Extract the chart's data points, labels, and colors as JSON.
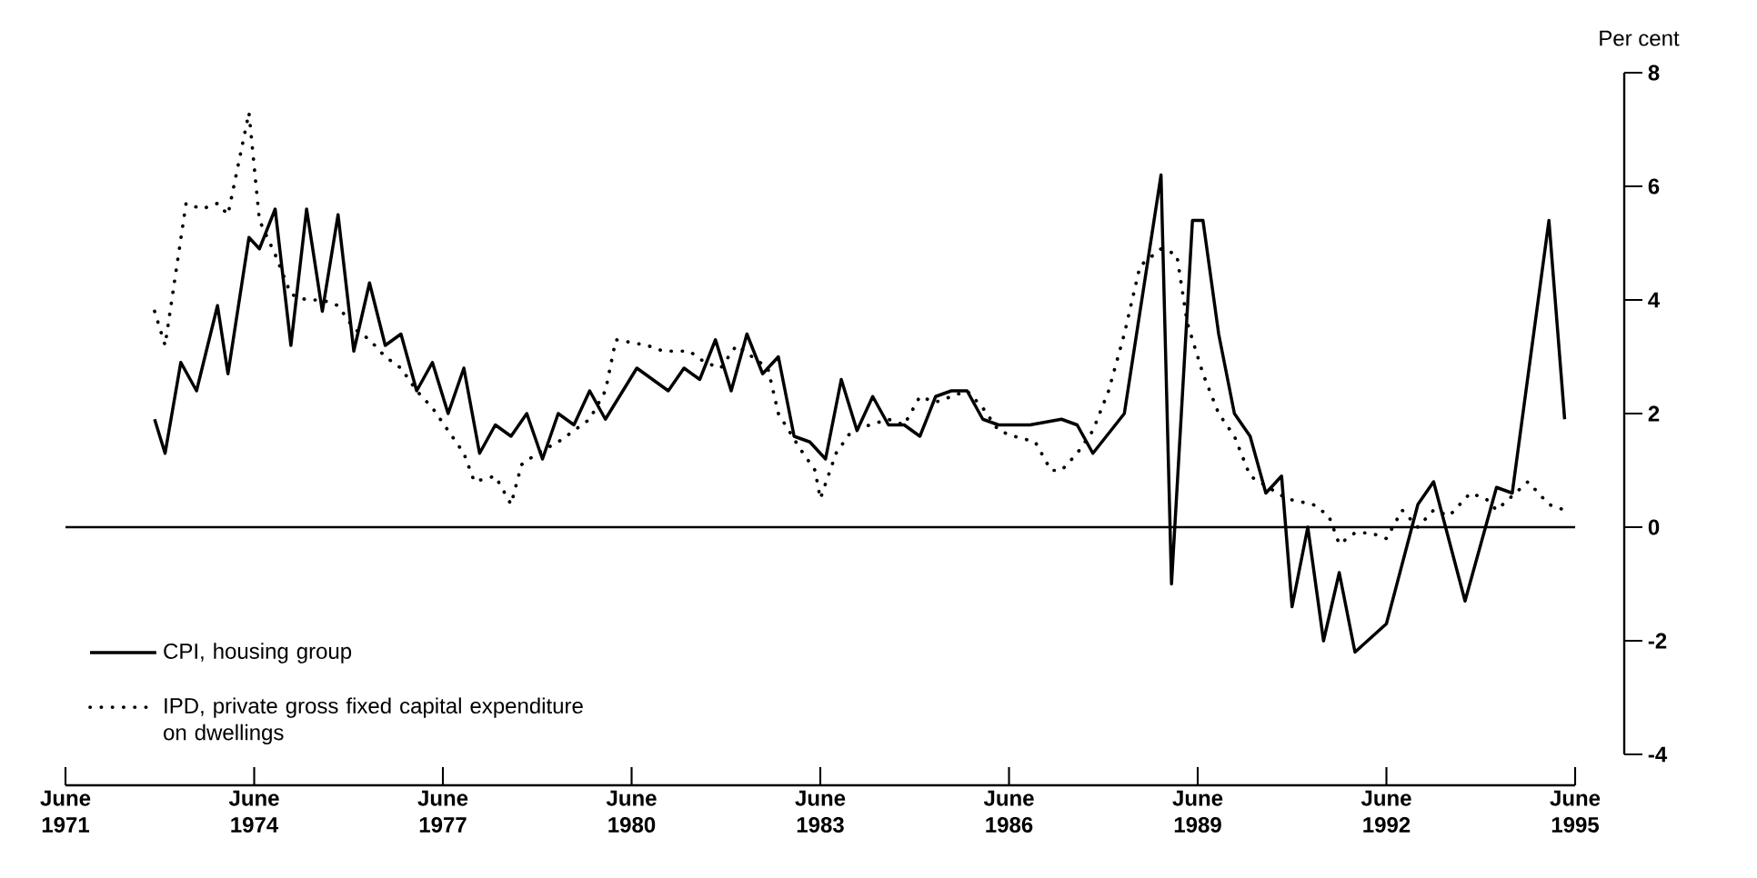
{
  "chart_data": {
    "type": "line",
    "ylabel": "Per cent",
    "xlim": [
      "1971-06",
      "1995-06"
    ],
    "xticks": [
      {
        "value": "1971-06",
        "label": "June 1971"
      },
      {
        "value": "1974-06",
        "label": "June 1974"
      },
      {
        "value": "1977-06",
        "label": "June 1977"
      },
      {
        "value": "1980-06",
        "label": "June 1980"
      },
      {
        "value": "1983-06",
        "label": "June 1983"
      },
      {
        "value": "1986-06",
        "label": "June 1986"
      },
      {
        "value": "1989-06",
        "label": "June 1989"
      },
      {
        "value": "1992-06",
        "label": "June 1992"
      },
      {
        "value": "1995-06",
        "label": "June 1995"
      }
    ],
    "ylim": [
      -4,
      8
    ],
    "yticks": [
      -4,
      -2,
      0,
      2,
      4,
      6,
      8
    ],
    "legend": "bottom left",
    "ref_lines": [
      {
        "axis": "y",
        "value": 0,
        "color": "#000000",
        "line_style": "solid"
      }
    ],
    "series": [
      {
        "name": "CPI, housing group",
        "color": "#000000",
        "line_style": "solid",
        "x": [
          "1972-11",
          "1973-01",
          "1973-04",
          "1973-07",
          "1973-11",
          "1974-01",
          "1974-05",
          "1974-07",
          "1974-10",
          "1975-01",
          "1975-04",
          "1975-07",
          "1975-10",
          "1976-01",
          "1976-04",
          "1976-07",
          "1976-10",
          "1977-01",
          "1977-04",
          "1977-07",
          "1977-10",
          "1978-01",
          "1978-04",
          "1978-07",
          "1978-10",
          "1979-01",
          "1979-04",
          "1979-07",
          "1979-10",
          "1980-01",
          "1980-07",
          "1981-01",
          "1981-04",
          "1981-07",
          "1981-10",
          "1982-01",
          "1982-04",
          "1982-07",
          "1982-10",
          "1983-01",
          "1983-04",
          "1983-07",
          "1983-10",
          "1984-01",
          "1984-04",
          "1984-07",
          "1984-10",
          "1985-01",
          "1985-04",
          "1985-07",
          "1985-10",
          "1986-01",
          "1986-04",
          "1986-10",
          "1987-04",
          "1987-07",
          "1987-10",
          "1988-04",
          "1988-11",
          "1989-01",
          "1989-05",
          "1989-07",
          "1989-10",
          "1990-01",
          "1990-04",
          "1990-07",
          "1990-10",
          "1990-12",
          "1991-03",
          "1991-06",
          "1991-09",
          "1991-12",
          "1992-06",
          "1992-12",
          "1993-03",
          "1993-09",
          "1994-03",
          "1994-06",
          "1995-01",
          "1995-04"
        ],
        "values": [
          1.9,
          1.3,
          2.9,
          2.4,
          3.9,
          2.7,
          5.1,
          4.9,
          5.6,
          3.2,
          5.6,
          3.8,
          5.5,
          3.1,
          4.3,
          3.2,
          3.4,
          2.4,
          2.9,
          2.0,
          2.8,
          1.3,
          1.8,
          1.6,
          2.0,
          1.2,
          2.0,
          1.8,
          2.4,
          1.9,
          2.8,
          2.4,
          2.8,
          2.6,
          3.3,
          2.4,
          3.4,
          2.7,
          3.0,
          1.6,
          1.5,
          1.2,
          2.6,
          1.7,
          2.3,
          1.8,
          1.8,
          1.6,
          2.3,
          2.4,
          2.4,
          1.9,
          1.8,
          1.8,
          1.9,
          1.8,
          1.3,
          2.0,
          6.2,
          -1.0,
          5.4,
          5.4,
          3.4,
          2.0,
          1.6,
          0.6,
          0.9,
          -1.4,
          0.0,
          -2.0,
          -0.8,
          -2.2,
          -1.7,
          0.4,
          0.8,
          -1.3,
          0.7,
          0.6,
          5.4,
          1.9
        ]
      },
      {
        "name": "IPD, private gross fixed capital expenditure on dwellings",
        "color": "#000000",
        "line_style": "dotted",
        "x": [
          "1972-11",
          "1973-01",
          "1973-05",
          "1973-08",
          "1973-11",
          "1974-01",
          "1974-05",
          "1974-07",
          "1974-10",
          "1975-01",
          "1975-04",
          "1975-07",
          "1975-10",
          "1976-01",
          "1976-04",
          "1976-07",
          "1976-10",
          "1977-01",
          "1977-04",
          "1977-07",
          "1977-10",
          "1977-12",
          "1978-04",
          "1978-07",
          "1978-09",
          "1978-12",
          "1979-04",
          "1979-07",
          "1979-10",
          "1980-01",
          "1980-03",
          "1980-09",
          "1980-12",
          "1981-05",
          "1981-08",
          "1981-11",
          "1982-02",
          "1982-08",
          "1982-10",
          "1983-02",
          "1983-05",
          "1983-06",
          "1983-09",
          "1983-12",
          "1984-07",
          "1984-10",
          "1985-01",
          "1985-04",
          "1985-07",
          "1985-10",
          "1986-01",
          "1986-04",
          "1986-07",
          "1986-11",
          "1987-02",
          "1987-04",
          "1987-07",
          "1987-10",
          "1988-01",
          "1988-04",
          "1988-07",
          "1988-11",
          "1989-02",
          "1989-04",
          "1989-07",
          "1989-10",
          "1990-01",
          "1990-04",
          "1990-11",
          "1991-04",
          "1991-07",
          "1991-09",
          "1991-12",
          "1992-03",
          "1992-06",
          "1992-09",
          "1992-12",
          "1993-03",
          "1993-06",
          "1993-10",
          "1994-01",
          "1994-03",
          "1994-09",
          "1995-01",
          "1995-04"
        ],
        "values": [
          3.8,
          3.2,
          5.7,
          5.6,
          5.7,
          5.5,
          7.3,
          5.4,
          4.8,
          4.1,
          4.0,
          4.0,
          3.9,
          3.5,
          3.3,
          3.0,
          2.8,
          2.4,
          2.1,
          1.7,
          1.3,
          0.8,
          0.9,
          0.4,
          1.1,
          1.3,
          1.5,
          1.7,
          1.9,
          2.4,
          3.3,
          3.2,
          3.1,
          3.1,
          2.9,
          2.8,
          3.2,
          2.8,
          2.0,
          1.4,
          1.0,
          0.5,
          1.3,
          1.7,
          1.9,
          1.8,
          2.3,
          2.2,
          2.3,
          2.4,
          2.1,
          1.7,
          1.6,
          1.5,
          1.0,
          1.0,
          1.3,
          1.7,
          2.4,
          3.4,
          4.6,
          4.9,
          4.8,
          3.6,
          2.7,
          2.0,
          1.6,
          0.9,
          0.5,
          0.4,
          0.2,
          -0.3,
          -0.1,
          -0.1,
          -0.2,
          0.3,
          0.0,
          0.3,
          0.2,
          0.6,
          0.5,
          0.3,
          0.8,
          0.4,
          0.3
        ]
      }
    ]
  }
}
